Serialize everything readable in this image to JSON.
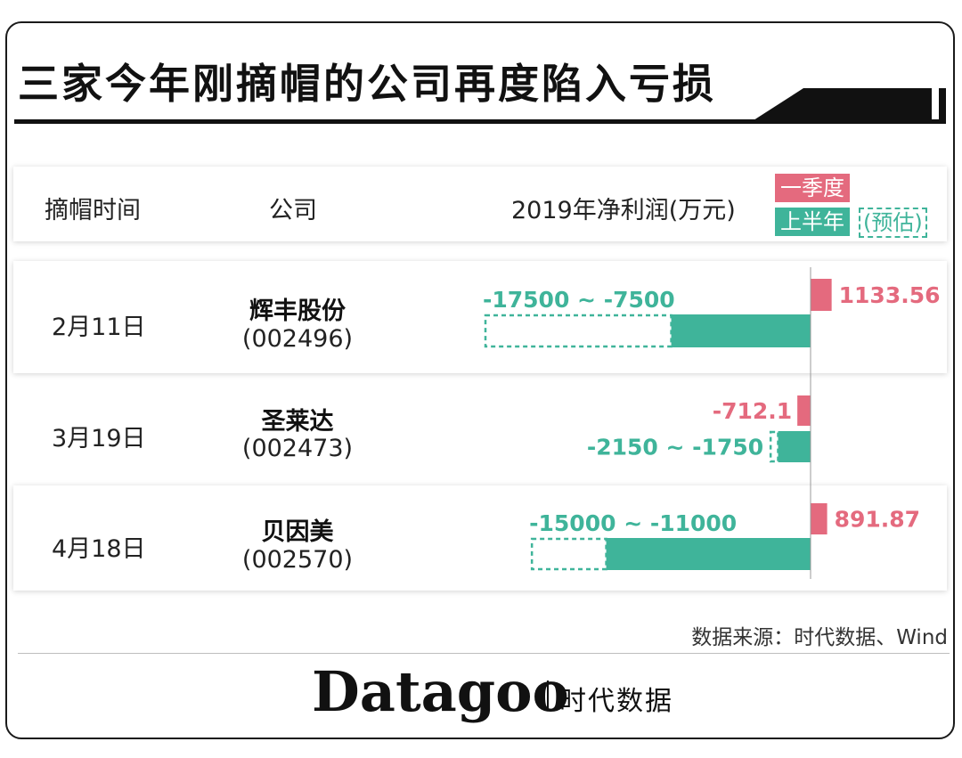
{
  "title": "三家今年刚摘帽的公司再度陷入亏损",
  "header": {
    "col_date": "摘帽时间",
    "col_company": "公司",
    "col_profit": "2019年净利润(万元)"
  },
  "legend": {
    "q1": "一季度",
    "h1": "上半年",
    "h1_estimate": "(预估)"
  },
  "colors": {
    "q1": "#e46a7e",
    "h1": "#3fb49a",
    "text": "#1a1a1a",
    "legend_text": "#ffffff"
  },
  "rows": [
    {
      "date": "2月11日",
      "company": "辉丰股份",
      "code": "(002496)"
    },
    {
      "date": "3月19日",
      "company": "圣莱达",
      "code": "(002473)"
    },
    {
      "date": "4月18日",
      "company": "贝因美",
      "code": "(002570)"
    }
  ],
  "chart_data": {
    "type": "bar",
    "orientation": "horizontal",
    "unit": "万元",
    "categories": [
      "辉丰股份",
      "圣莱达",
      "贝因美"
    ],
    "series": [
      {
        "name": "一季度",
        "values": [
          1133.56,
          -712.1,
          891.87
        ],
        "labels": [
          "1133.56",
          "-712.1",
          "891.87"
        ]
      },
      {
        "name": "上半年(预估)",
        "ranges": [
          [
            -17500,
            -7500
          ],
          [
            -2150,
            -1750
          ],
          [
            -15000,
            -11000
          ]
        ],
        "labels": [
          "-17500 ~ -7500",
          "-2150 ~ -1750",
          "-15000 ~ -11000"
        ]
      }
    ]
  },
  "source": "数据来源：时代数据、Wind",
  "brand": {
    "name": "Datagoo",
    "cn": "时代数据"
  }
}
